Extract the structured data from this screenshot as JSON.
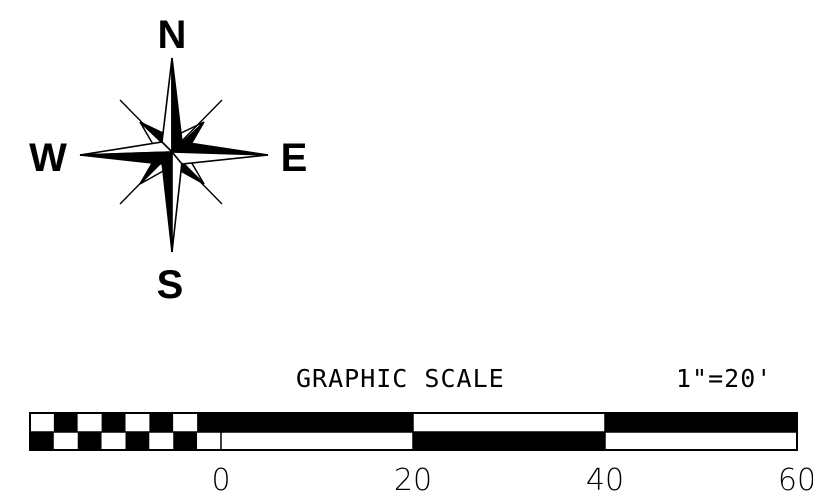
{
  "compass": {
    "north_label": "N",
    "south_label": "S",
    "east_label": "E",
    "west_label": "W",
    "colors": {
      "fill": "#000000",
      "light": "#ffffff"
    }
  },
  "scale_bar": {
    "title": "GRAPHIC SCALE",
    "ratio": "1\"=20'",
    "subdivision_count": 4,
    "major_labels": [
      "0",
      "20",
      "40",
      "60"
    ],
    "colors": {
      "dark": "#000000",
      "light": "#ffffff"
    }
  }
}
